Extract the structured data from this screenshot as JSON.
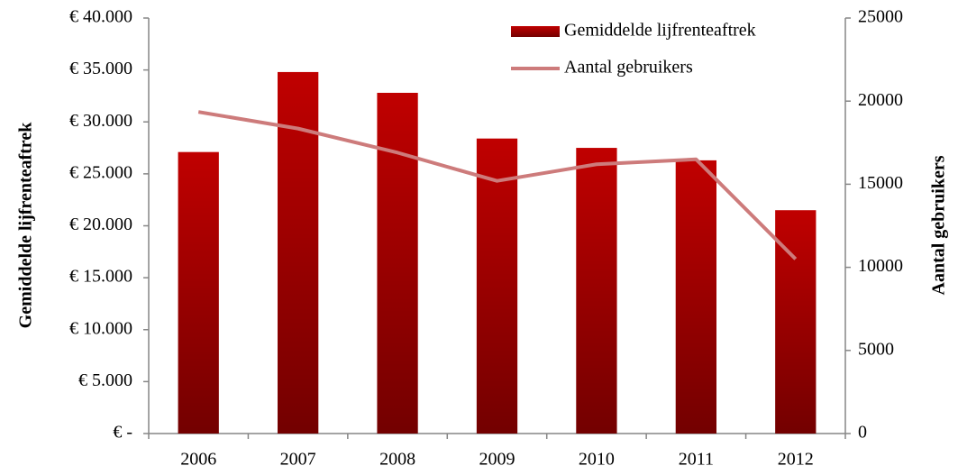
{
  "chart_data": {
    "type": "bar",
    "categories": [
      "2006",
      "2007",
      "2008",
      "2009",
      "2010",
      "2011",
      "2012"
    ],
    "series": [
      {
        "name": "Gemiddelde lijfrenteaftrek",
        "type": "bar",
        "color": "#c00000",
        "values": [
          27100,
          34800,
          32800,
          28400,
          27500,
          26300,
          21500
        ]
      },
      {
        "name": "Aantal gebruikers",
        "type": "line",
        "axis": "y2",
        "color": "#cd7b7b",
        "values": [
          19350,
          18350,
          16900,
          15200,
          16200,
          16500,
          10500
        ]
      }
    ],
    "ylabel": "Gemiddelde lijfrenteaftrek",
    "y2label": "Aantal gebruikers",
    "ylim": [
      0,
      40000
    ],
    "yticks": [
      {
        "value": 0,
        "label": "€ -"
      },
      {
        "value": 5000,
        "label": "€ 5.000"
      },
      {
        "value": 10000,
        "label": "€ 10.000"
      },
      {
        "value": 15000,
        "label": "€ 15.000"
      },
      {
        "value": 20000,
        "label": "€ 20.000"
      },
      {
        "value": 25000,
        "label": "€ 25.000"
      },
      {
        "value": 30000,
        "label": "€ 30.000"
      },
      {
        "value": 35000,
        "label": "€ 35.000"
      },
      {
        "value": 40000,
        "label": "€ 40.000"
      }
    ],
    "y2lim": [
      0,
      25000
    ],
    "y2ticks": [
      0,
      5000,
      10000,
      15000,
      20000,
      25000
    ],
    "legend": "upper right",
    "grid": false
  }
}
